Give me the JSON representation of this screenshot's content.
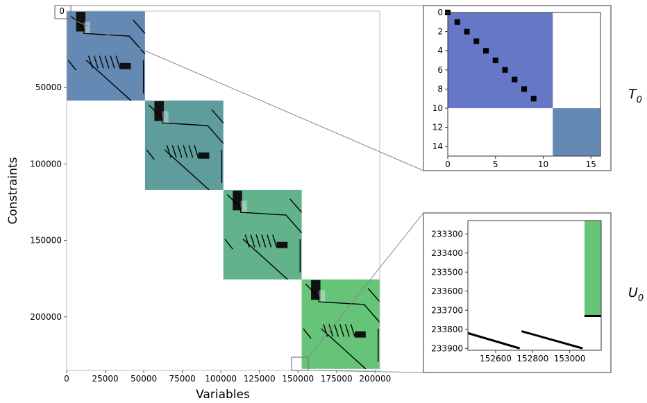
{
  "chart_data": [
    {
      "type": "heatmap",
      "name": "main-sparsity",
      "title": "",
      "xlabel": "Variables",
      "ylabel": "Constraints",
      "xlim": [
        0,
        203000
      ],
      "ylim": [
        235000,
        0
      ],
      "x_ticks": [
        0,
        25000,
        50000,
        75000,
        100000,
        125000,
        150000,
        175000,
        200000
      ],
      "y_ticks": [
        50000,
        100000,
        150000,
        200000
      ],
      "y_tick_zero": "0",
      "blocks": [
        {
          "x": [
            0,
            50800
          ],
          "y": [
            0,
            58500
          ],
          "color": "#6489b3"
        },
        {
          "x": [
            50800,
            101600
          ],
          "y": [
            58500,
            117000
          ],
          "color": "#5f9c9c"
        },
        {
          "x": [
            101600,
            152400
          ],
          "y": [
            117000,
            175500
          ],
          "color": "#62b28c"
        },
        {
          "x": [
            152400,
            203000
          ],
          "y": [
            175500,
            234000
          ],
          "color": "#66c478"
        }
      ],
      "zoom_boxes": [
        {
          "x": [
            0,
            16
          ],
          "y": [
            0,
            15
          ],
          "target": "T_0"
        },
        {
          "x": [
            148000,
            159000
          ],
          "y": [
            224000,
            234000
          ],
          "target": "U_0"
        }
      ]
    },
    {
      "type": "heatmap",
      "name": "inset-T0",
      "label": "T",
      "label_sub": "0",
      "xlim": [
        0,
        16
      ],
      "ylim": [
        15,
        0
      ],
      "x_ticks": [
        0,
        5,
        10,
        15
      ],
      "y_ticks": [
        0,
        2,
        4,
        6,
        8,
        10,
        12,
        14
      ],
      "blocks": [
        {
          "x": [
            0,
            11
          ],
          "y": [
            0,
            10
          ],
          "color": "#6577c6"
        },
        {
          "x": [
            11,
            16
          ],
          "y": [
            10,
            15
          ],
          "color": "#6489b3"
        }
      ],
      "nonzeros": [
        [
          0,
          0
        ],
        [
          1,
          1
        ],
        [
          2,
          2
        ],
        [
          3,
          3
        ],
        [
          4,
          4
        ],
        [
          5,
          5
        ],
        [
          6,
          6
        ],
        [
          7,
          7
        ],
        [
          8,
          8
        ],
        [
          9,
          9
        ]
      ]
    },
    {
      "type": "heatmap",
      "name": "inset-U0",
      "label": "U",
      "label_sub": "0",
      "xlim": [
        152450,
        153170
      ],
      "ylim": [
        233910,
        233230
      ],
      "x_ticks": [
        152600,
        152800,
        153000
      ],
      "y_ticks": [
        233300,
        233400,
        233500,
        233600,
        233700,
        233800,
        233900
      ],
      "blocks": [
        {
          "x": [
            153080,
            153170
          ],
          "y": [
            233230,
            233730
          ],
          "color": "#66c478"
        }
      ],
      "lines": [
        {
          "from": [
            152450,
            233820
          ],
          "to": [
            152730,
            233900
          ]
        },
        {
          "from": [
            152740,
            233810
          ],
          "to": [
            153070,
            233900
          ]
        },
        {
          "from": [
            153080,
            233730
          ],
          "to": [
            153170,
            233730
          ]
        }
      ]
    }
  ]
}
